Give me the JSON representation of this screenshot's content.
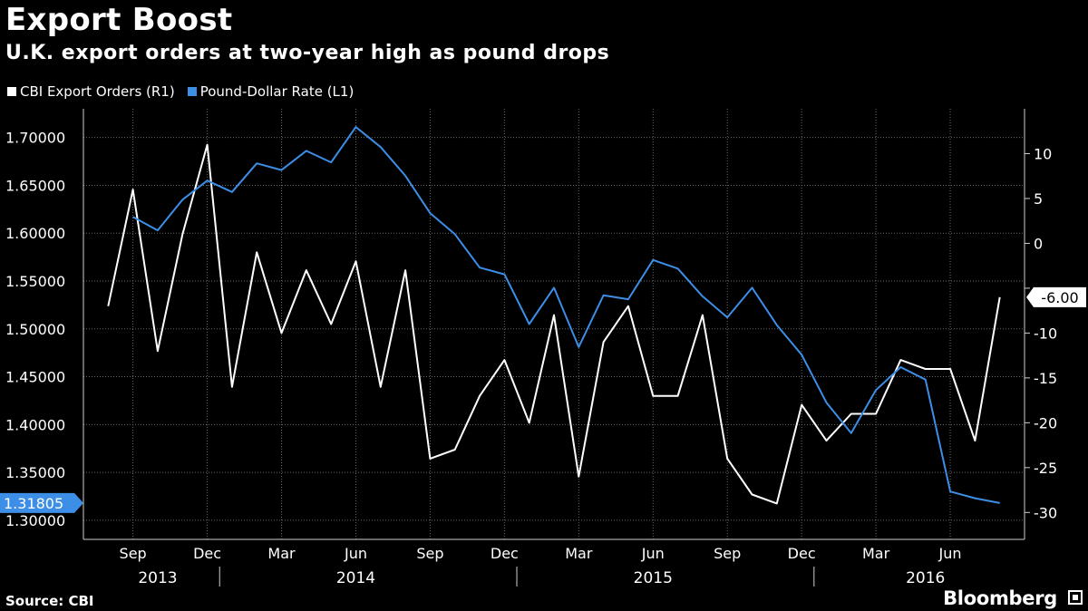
{
  "header": {
    "title": "Export Boost",
    "subtitle": "U.K. export orders at two-year high as pound drops"
  },
  "footer": {
    "source": "Source: CBI",
    "brand": "Bloomberg"
  },
  "chart_data": {
    "type": "line",
    "title": "Export Boost",
    "subtitle": "U.K. export orders at two-year high as pound drops",
    "legend": [
      {
        "name": "CBI Export Orders (R1)",
        "color": "#ffffff"
      },
      {
        "name": "Pound-Dollar Rate (L1)",
        "color": "#3d8ee6"
      }
    ],
    "legend_placement": "top-left",
    "grid": true,
    "x_range": [
      "2013-07",
      "2016-09"
    ],
    "x_month_labels": [
      {
        "date": "2013-09",
        "label": "Sep"
      },
      {
        "date": "2013-12",
        "label": "Dec"
      },
      {
        "date": "2014-03",
        "label": "Mar"
      },
      {
        "date": "2014-06",
        "label": "Jun"
      },
      {
        "date": "2014-09",
        "label": "Sep"
      },
      {
        "date": "2014-12",
        "label": "Dec"
      },
      {
        "date": "2015-03",
        "label": "Mar"
      },
      {
        "date": "2015-06",
        "label": "Jun"
      },
      {
        "date": "2015-09",
        "label": "Sep"
      },
      {
        "date": "2015-12",
        "label": "Dec"
      },
      {
        "date": "2016-03",
        "label": "Mar"
      },
      {
        "date": "2016-06",
        "label": "Jun"
      }
    ],
    "x_year_labels": [
      {
        "date": "2013-10",
        "label": "2013"
      },
      {
        "date": "2014-06",
        "label": "2014"
      },
      {
        "date": "2015-06",
        "label": "2015"
      },
      {
        "date": "2016-05",
        "label": "2016"
      }
    ],
    "year_dividers": [
      "2013-12",
      "2014-12",
      "2015-12"
    ],
    "y_left": {
      "range": [
        1.28,
        1.73
      ],
      "ticks": [
        1.3,
        1.35,
        1.4,
        1.45,
        1.5,
        1.55,
        1.6,
        1.65,
        1.7
      ],
      "tick_labels": [
        "1.30000",
        "1.35000",
        "1.40000",
        "1.45000",
        "1.50000",
        "1.55000",
        "1.60000",
        "1.65000",
        "1.70000"
      ]
    },
    "y_right": {
      "range": [
        -33,
        15
      ],
      "ticks": [
        -30,
        -25,
        -20,
        -15,
        -10,
        -5,
        0,
        5,
        10
      ],
      "tick_labels": [
        "-30",
        "-25",
        "-20",
        "-15",
        "-10",
        "",
        "0",
        "5",
        "10"
      ]
    },
    "series": [
      {
        "name": "CBI Export Orders (R1)",
        "axis": "right",
        "color": "#ffffff",
        "last_value_label": "-6.00",
        "points": [
          [
            "2013-08",
            -7
          ],
          [
            "2013-09",
            6
          ],
          [
            "2013-10",
            -12
          ],
          [
            "2013-11",
            1
          ],
          [
            "2013-12",
            11
          ],
          [
            "2014-01",
            -16
          ],
          [
            "2014-02",
            -1
          ],
          [
            "2014-03",
            -10
          ],
          [
            "2014-04",
            -3
          ],
          [
            "2014-05",
            -9
          ],
          [
            "2014-06",
            -2
          ],
          [
            "2014-07",
            -16
          ],
          [
            "2014-08",
            -3
          ],
          [
            "2014-09",
            -24
          ],
          [
            "2014-10",
            -23
          ],
          [
            "2014-11",
            -17
          ],
          [
            "2014-12",
            -13
          ],
          [
            "2015-01",
            -20
          ],
          [
            "2015-02",
            -8
          ],
          [
            "2015-03",
            -26
          ],
          [
            "2015-04",
            -11
          ],
          [
            "2015-05",
            -7
          ],
          [
            "2015-06",
            -17
          ],
          [
            "2015-07",
            -17
          ],
          [
            "2015-08",
            -8
          ],
          [
            "2015-09",
            -24
          ],
          [
            "2015-10",
            -28
          ],
          [
            "2015-11",
            -29
          ],
          [
            "2015-12",
            -18
          ],
          [
            "2016-01",
            -22
          ],
          [
            "2016-02",
            -19
          ],
          [
            "2016-03",
            -19
          ],
          [
            "2016-04",
            -13
          ],
          [
            "2016-05",
            -14
          ],
          [
            "2016-06",
            -14
          ],
          [
            "2016-07",
            -22
          ],
          [
            "2016-08",
            -6
          ]
        ]
      },
      {
        "name": "Pound-Dollar Rate (L1)",
        "axis": "left",
        "color": "#3d8ee6",
        "last_value_label": "1.31805",
        "points": [
          [
            "2013-09",
            1.617
          ],
          [
            "2013-10",
            1.603
          ],
          [
            "2013-11",
            1.635
          ],
          [
            "2013-12",
            1.655
          ],
          [
            "2014-01",
            1.643
          ],
          [
            "2014-02",
            1.673
          ],
          [
            "2014-03",
            1.666
          ],
          [
            "2014-04",
            1.686
          ],
          [
            "2014-05",
            1.674
          ],
          [
            "2014-06",
            1.711
          ],
          [
            "2014-07",
            1.69
          ],
          [
            "2014-08",
            1.66
          ],
          [
            "2014-09",
            1.621
          ],
          [
            "2014-10",
            1.599
          ],
          [
            "2014-11",
            1.564
          ],
          [
            "2014-12",
            1.557
          ],
          [
            "2015-01",
            1.505
          ],
          [
            "2015-02",
            1.543
          ],
          [
            "2015-03",
            1.481
          ],
          [
            "2015-04",
            1.535
          ],
          [
            "2015-05",
            1.531
          ],
          [
            "2015-06",
            1.572
          ],
          [
            "2015-07",
            1.563
          ],
          [
            "2015-08",
            1.534
          ],
          [
            "2015-09",
            1.512
          ],
          [
            "2015-10",
            1.543
          ],
          [
            "2015-11",
            1.504
          ],
          [
            "2015-12",
            1.473
          ],
          [
            "2016-01",
            1.423
          ],
          [
            "2016-02",
            1.391
          ],
          [
            "2016-03",
            1.436
          ],
          [
            "2016-04",
            1.46
          ],
          [
            "2016-05",
            1.447
          ],
          [
            "2016-06",
            1.33
          ],
          [
            "2016-07",
            1.323
          ],
          [
            "2016-08",
            1.318
          ]
        ]
      }
    ]
  }
}
